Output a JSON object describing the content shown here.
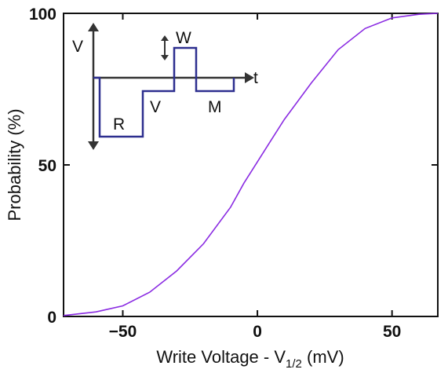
{
  "chart_data": {
    "type": "line",
    "xlabel_main": "Write Voltage - V",
    "xlabel_sub": "1/2",
    "xlabel_unit": " (mV)",
    "ylabel": "Probability (%)",
    "xlim": [
      -72,
      67
    ],
    "ylim": [
      0,
      100
    ],
    "xticks": [
      -50,
      0,
      50
    ],
    "yticks": [
      0,
      50,
      100
    ],
    "xtick_labels": [
      "−50",
      "0",
      "50"
    ],
    "ytick_labels": [
      "0",
      "50",
      "100"
    ],
    "grid": false,
    "series": [
      {
        "color": "#8a2be2",
        "x": [
          -72,
          -60,
          -50,
          -40,
          -30,
          -20,
          -10,
          -5,
          0,
          5,
          10,
          20,
          30,
          40,
          50,
          60,
          67
        ],
        "y": [
          0.3,
          1.5,
          3.5,
          8,
          15,
          24,
          36,
          44,
          51,
          58,
          65,
          77,
          88,
          95,
          98.5,
          99.7,
          100
        ]
      }
    ]
  },
  "inset": {
    "v_label": "V",
    "t_label": "t",
    "pulses": [
      "R",
      "V",
      "W",
      "M"
    ],
    "line_color": "#2d2f8f"
  }
}
